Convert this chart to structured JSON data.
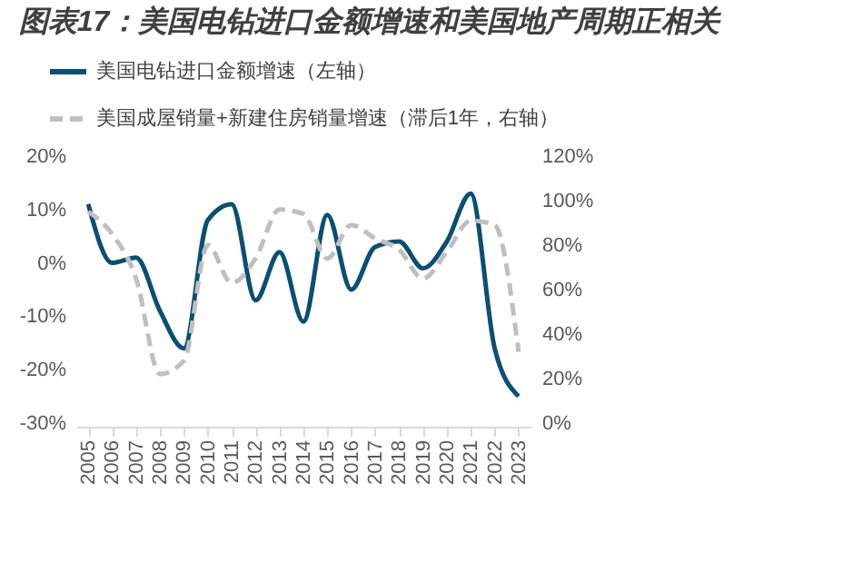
{
  "chart_data": {
    "type": "line",
    "title": "图表17：美国电钻进口金额增速和美国地产周期正相关",
    "categories": [
      "2005",
      "2006",
      "2007",
      "2008",
      "2009",
      "2010",
      "2011",
      "2012",
      "2013",
      "2014",
      "2015",
      "2016",
      "2017",
      "2018",
      "2019",
      "2020",
      "2021",
      "2022",
      "2023"
    ],
    "series": [
      {
        "name": "美国电钻进口金额增速（左轴）",
        "color": "#0b4f71",
        "line_style": "solid",
        "values": [
          11,
          0,
          1,
          -9,
          -16,
          8,
          11,
          -7,
          2,
          -11,
          9,
          -5,
          3,
          4,
          -1,
          4,
          13,
          -16,
          -25
        ]
      },
      {
        "name": "美国成屋销量+新建住房销量增速（滞后1年，右轴）",
        "color": "#bfbfbf",
        "line_style": "dashed",
        "axis": "y2",
        "values": [
          95,
          85,
          65,
          22,
          28,
          80,
          63,
          74,
          96,
          94,
          74,
          89,
          83,
          78,
          65,
          77,
          91,
          89,
          32
        ]
      }
    ],
    "ylim": [
      -30,
      20
    ],
    "yticks": [
      {
        "value": -30,
        "label": "-30%"
      },
      {
        "value": -20,
        "label": "-20%"
      },
      {
        "value": -10,
        "label": "-10%"
      },
      {
        "value": 0,
        "label": "0%"
      },
      {
        "value": 10,
        "label": "10%"
      },
      {
        "value": 20,
        "label": "20%"
      }
    ],
    "y2lim": [
      0,
      120
    ],
    "y2ticks": [
      {
        "value": 0,
        "label": "0%"
      },
      {
        "value": 20,
        "label": "20%"
      },
      {
        "value": 40,
        "label": "40%"
      },
      {
        "value": 60,
        "label": "60%"
      },
      {
        "value": 80,
        "label": "80%"
      },
      {
        "value": 100,
        "label": "100%"
      },
      {
        "value": 120,
        "label": "120%"
      }
    ],
    "grid": false,
    "legend": "top"
  }
}
